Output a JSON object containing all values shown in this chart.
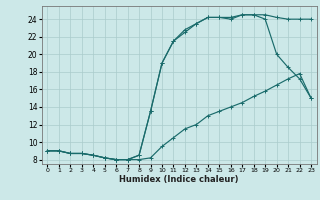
{
  "xlabel": "Humidex (Indice chaleur)",
  "background_color": "#cce8e8",
  "grid_color": "#aacccc",
  "line_color": "#1a6b6b",
  "xlim": [
    -0.5,
    23.5
  ],
  "ylim": [
    7.5,
    25.5
  ],
  "xticks": [
    0,
    1,
    2,
    3,
    4,
    5,
    6,
    7,
    8,
    9,
    10,
    11,
    12,
    13,
    14,
    15,
    16,
    17,
    18,
    19,
    20,
    21,
    22,
    23
  ],
  "yticks": [
    8,
    10,
    12,
    14,
    16,
    18,
    20,
    22,
    24
  ],
  "line1_x": [
    0,
    1,
    2,
    3,
    4,
    5,
    6,
    7,
    8,
    9,
    10,
    11,
    12,
    13,
    14,
    15,
    16,
    17,
    18,
    19,
    20,
    21,
    22,
    23
  ],
  "line1_y": [
    9.0,
    9.0,
    8.7,
    8.7,
    8.5,
    8.2,
    8.0,
    8.0,
    8.0,
    8.2,
    9.5,
    10.5,
    11.5,
    12.0,
    13.0,
    13.5,
    14.0,
    14.5,
    15.2,
    15.8,
    16.5,
    17.2,
    17.8,
    15.0
  ],
  "line2_x": [
    0,
    1,
    2,
    3,
    4,
    5,
    6,
    7,
    8,
    9,
    10,
    11,
    12,
    13,
    14,
    15,
    16,
    17,
    18,
    19,
    20,
    21,
    22,
    23
  ],
  "line2_y": [
    9.0,
    9.0,
    8.7,
    8.7,
    8.5,
    8.2,
    8.0,
    8.0,
    8.5,
    13.5,
    19.0,
    21.5,
    22.5,
    23.5,
    24.2,
    24.2,
    24.0,
    24.5,
    24.5,
    24.0,
    20.0,
    18.5,
    17.2,
    15.0
  ],
  "line3_x": [
    0,
    1,
    2,
    3,
    4,
    5,
    6,
    7,
    8,
    9,
    10,
    11,
    12,
    13,
    14,
    15,
    16,
    17,
    18,
    19,
    20,
    21,
    22,
    23
  ],
  "line3_y": [
    9.0,
    9.0,
    8.7,
    8.7,
    8.5,
    8.2,
    8.0,
    8.0,
    8.5,
    13.5,
    19.0,
    21.5,
    22.8,
    23.5,
    24.2,
    24.2,
    24.2,
    24.5,
    24.5,
    24.5,
    24.2,
    24.0,
    24.0,
    24.0
  ]
}
